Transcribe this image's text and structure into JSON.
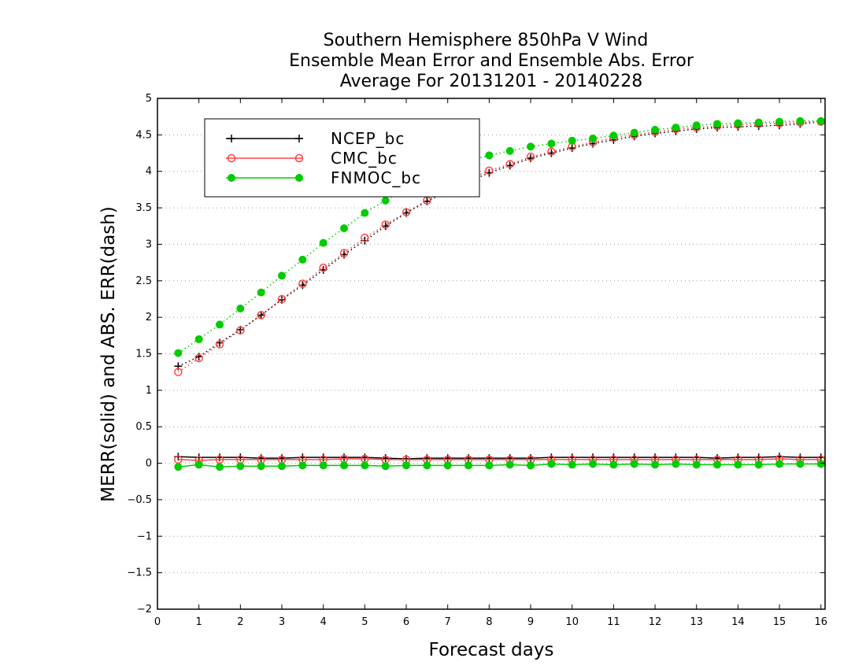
{
  "chart_data": {
    "type": "line",
    "title_lines": [
      "Southern Hemisphere 850hPa V Wind",
      "Ensemble Mean Error and Ensemble Abs. Error",
      "Average For 20131201 - 20140228"
    ],
    "xlabel": "Forecast days",
    "ylabel": "MERR(solid) and ABS. ERR(dash)",
    "xlim": [
      0,
      16.1
    ],
    "ylim": [
      -2,
      5
    ],
    "x_ticks": [
      "0",
      "1",
      "2",
      "3",
      "4",
      "5",
      "6",
      "7",
      "8",
      "9",
      "10",
      "11",
      "12",
      "13",
      "14",
      "15",
      "16"
    ],
    "y_ticks": [
      "−2",
      "−1.5",
      "−1",
      "−0.5",
      "0",
      "0.5",
      "1",
      "1.5",
      "2",
      "2.5",
      "3",
      "3.5",
      "4",
      "4.5",
      "5"
    ],
    "y_tick_values": [
      -2,
      -1.5,
      -1,
      -0.5,
      0,
      0.5,
      1,
      1.5,
      2,
      2.5,
      3,
      3.5,
      4,
      4.5,
      5
    ],
    "grid": "horizontal-dotted",
    "legend_position": "top-left",
    "x": [
      0.5,
      1,
      1.5,
      2,
      2.5,
      3,
      3.5,
      4,
      4.5,
      5,
      5.5,
      6,
      6.5,
      7,
      7.5,
      8,
      8.5,
      9,
      9.5,
      10,
      10.5,
      11,
      11.5,
      12,
      12.5,
      13,
      13.5,
      14,
      14.5,
      15,
      15.5,
      16
    ],
    "series": [
      {
        "name": "NCEP_bc",
        "color": "#000000",
        "marker": "plus",
        "merr": [
          0.09,
          0.08,
          0.08,
          0.08,
          0.07,
          0.07,
          0.08,
          0.08,
          0.08,
          0.08,
          0.07,
          0.06,
          0.07,
          0.07,
          0.07,
          0.07,
          0.07,
          0.07,
          0.08,
          0.08,
          0.08,
          0.08,
          0.08,
          0.08,
          0.08,
          0.08,
          0.07,
          0.08,
          0.08,
          0.09,
          0.08,
          0.08
        ],
        "abs_err": [
          1.33,
          1.46,
          1.65,
          1.83,
          2.03,
          2.24,
          2.44,
          2.65,
          2.86,
          3.05,
          3.25,
          3.43,
          3.59,
          3.73,
          3.86,
          3.98,
          4.08,
          4.18,
          4.25,
          4.32,
          4.38,
          4.43,
          4.48,
          4.52,
          4.55,
          4.58,
          4.6,
          4.61,
          4.62,
          4.63,
          4.65,
          4.68
        ]
      },
      {
        "name": "CMC_bc",
        "color": "#ff4444",
        "marker": "open-circle",
        "merr": [
          0.05,
          0.04,
          0.05,
          0.05,
          0.05,
          0.05,
          0.05,
          0.05,
          0.06,
          0.06,
          0.05,
          0.05,
          0.05,
          0.05,
          0.05,
          0.05,
          0.05,
          0.05,
          0.05,
          0.05,
          0.05,
          0.05,
          0.05,
          0.05,
          0.05,
          0.05,
          0.05,
          0.05,
          0.05,
          0.06,
          0.05,
          0.05
        ],
        "abs_err": [
          1.25,
          1.44,
          1.63,
          1.82,
          2.03,
          2.25,
          2.46,
          2.68,
          2.88,
          3.09,
          3.27,
          3.44,
          3.6,
          3.75,
          3.89,
          4.01,
          4.1,
          4.2,
          4.27,
          4.34,
          4.4,
          4.46,
          4.5,
          4.54,
          4.58,
          4.6,
          4.62,
          4.64,
          4.65,
          4.66,
          4.67,
          4.68
        ]
      },
      {
        "name": "FNMOC_bc",
        "color": "#00cc00",
        "marker": "filled-circle",
        "merr": [
          -0.05,
          -0.02,
          -0.05,
          -0.04,
          -0.04,
          -0.04,
          -0.03,
          -0.03,
          -0.03,
          -0.03,
          -0.04,
          -0.03,
          -0.03,
          -0.03,
          -0.03,
          -0.03,
          -0.02,
          -0.03,
          -0.01,
          -0.02,
          -0.01,
          -0.02,
          -0.01,
          -0.02,
          -0.01,
          -0.02,
          -0.02,
          -0.02,
          -0.02,
          -0.01,
          -0.01,
          -0.01
        ],
        "abs_err": [
          1.51,
          1.7,
          1.9,
          2.12,
          2.34,
          2.57,
          2.79,
          3.02,
          3.22,
          3.43,
          3.6,
          3.77,
          3.92,
          4.04,
          4.14,
          4.22,
          4.28,
          4.34,
          4.38,
          4.42,
          4.45,
          4.49,
          4.53,
          4.57,
          4.6,
          4.63,
          4.65,
          4.66,
          4.67,
          4.68,
          4.69,
          4.69
        ]
      }
    ]
  }
}
